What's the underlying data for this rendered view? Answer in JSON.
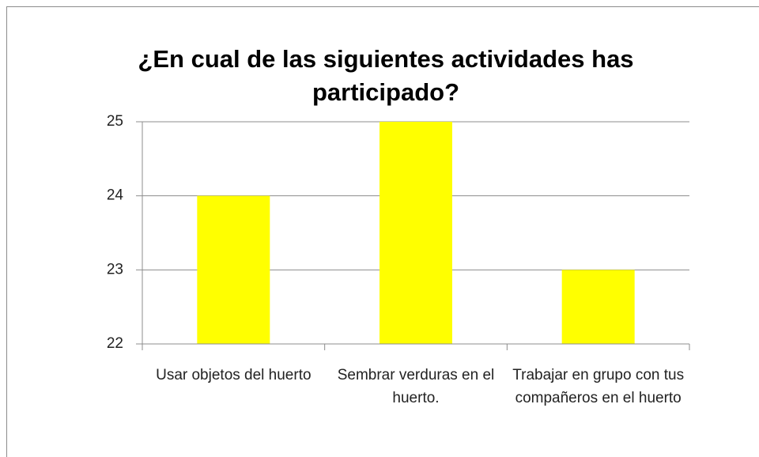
{
  "chart_data": {
    "type": "bar",
    "title": "¿En cual de las siguientes actividades has participado?",
    "categories": [
      "Usar objetos del huerto",
      "Sembrar verduras en el huerto.",
      "Trabajar en grupo con tus compañeros en el huerto"
    ],
    "values": [
      24,
      25,
      23
    ],
    "color": "#ffff00",
    "ylim": [
      22,
      25
    ],
    "yticks": [
      22,
      23,
      24,
      25
    ],
    "grid": true
  }
}
